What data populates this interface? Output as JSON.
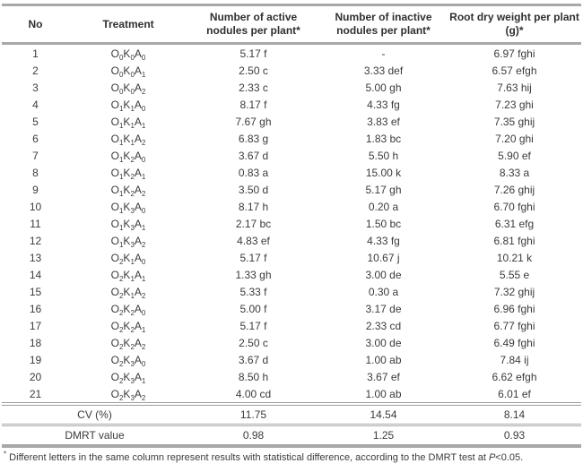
{
  "table": {
    "columns": [
      "No",
      "Treatment",
      "Number of active nodules per plant*",
      "Number of inactive nodules per plant*",
      "Root dry weight per plant (g)*"
    ],
    "rows": [
      {
        "no": "1",
        "treatment": "O0K0A0",
        "active": "5.17 f",
        "inactive": "-",
        "root": "6.97 fghi"
      },
      {
        "no": "2",
        "treatment": "O0K0A1",
        "active": "2.50 c",
        "inactive": "3.33 def",
        "root": "6.57 efgh"
      },
      {
        "no": "3",
        "treatment": "O0K0A2",
        "active": "2.33 c",
        "inactive": "5.00 gh",
        "root": "7.63 hij"
      },
      {
        "no": "4",
        "treatment": "O1K1A0",
        "active": "8.17 f",
        "inactive": "4.33 fg",
        "root": "7.23 ghi"
      },
      {
        "no": "5",
        "treatment": "O1K1A1",
        "active": "7.67 gh",
        "inactive": "3.83 ef",
        "root": "7.35 ghij"
      },
      {
        "no": "6",
        "treatment": "O1K1A2",
        "active": "6.83 g",
        "inactive": "1.83 bc",
        "root": "7.20 ghi"
      },
      {
        "no": "7",
        "treatment": "O1K2A0",
        "active": "3.67 d",
        "inactive": "5.50 h",
        "root": "5.90 ef"
      },
      {
        "no": "8",
        "treatment": "O1K2A1",
        "active": "0.83 a",
        "inactive": "15.00 k",
        "root": "8.33 a"
      },
      {
        "no": "9",
        "treatment": "O1K2A2",
        "active": "3.50 d",
        "inactive": "5.17 gh",
        "root": "7.26 ghij"
      },
      {
        "no": "10",
        "treatment": "O1K3A0",
        "active": "8.17 h",
        "inactive": "0.20 a",
        "root": "6.70 fghi"
      },
      {
        "no": "11",
        "treatment": "O1K3A1",
        "active": "2.17 bc",
        "inactive": "1.50 bc",
        "root": "6.31 efg"
      },
      {
        "no": "12",
        "treatment": "O1K3A2",
        "active": "4.83 ef",
        "inactive": "4.33 fg",
        "root": "6.81 fghi"
      },
      {
        "no": "13",
        "treatment": "O2K1A0",
        "active": "5.17 f",
        "inactive": "10.67 j",
        "root": "10.21 k"
      },
      {
        "no": "14",
        "treatment": "O2K1A1",
        "active": "1.33 gh",
        "inactive": "3.00 de",
        "root": "5.55 e"
      },
      {
        "no": "15",
        "treatment": "O2K1A2",
        "active": "5.33 f",
        "inactive": "0.30 a",
        "root": "7.32 ghij"
      },
      {
        "no": "16",
        "treatment": "O2K2A0",
        "active": "5.00 f",
        "inactive": "3.17 de",
        "root": "6.96 fghi"
      },
      {
        "no": "17",
        "treatment": "O2K2A1",
        "active": "5.17 f",
        "inactive": "2.33 cd",
        "root": "6.77 fghi"
      },
      {
        "no": "18",
        "treatment": "O2K2A2",
        "active": "2.50 c",
        "inactive": "3.00 de",
        "root": "6.49 fghi"
      },
      {
        "no": "19",
        "treatment": "O2K3A0",
        "active": "3.67 d",
        "inactive": "1.00 ab",
        "root": "7.84 ij"
      },
      {
        "no": "20",
        "treatment": "O2K3A1",
        "active": "8.50 h",
        "inactive": "3.67 ef",
        "root": "6.62 efgh"
      },
      {
        "no": "21",
        "treatment": "O2K3A2",
        "active": "4.00 cd",
        "inactive": "1.00 ab",
        "root": "6.01 ef"
      }
    ],
    "summary": [
      {
        "label": "CV (%)",
        "active": "11.75",
        "inactive": "14.54",
        "root": "8.14"
      },
      {
        "label": "DMRT value",
        "active": "0.98",
        "inactive": "1.25",
        "root": "0.93"
      }
    ]
  },
  "footnote": {
    "marker": "*",
    "text": " Different letters in the same column represent results with statistical difference, according to the DMRT test at ",
    "p_symbol": "P",
    "p_value": "<0.05."
  },
  "colors": {
    "rule_gray": "#a8a8a8",
    "text_dark": "#3b3b3b",
    "background": "#ffffff"
  }
}
